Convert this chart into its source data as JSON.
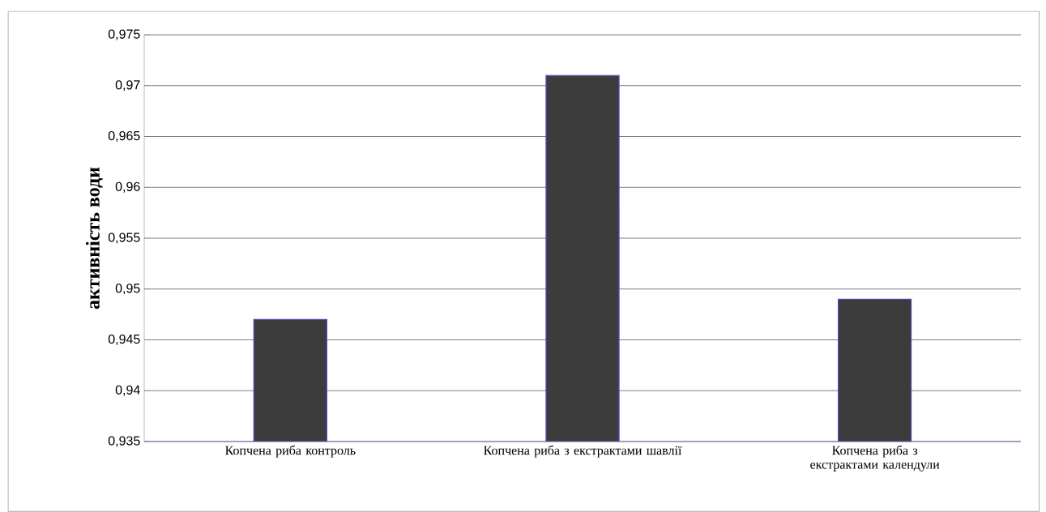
{
  "chart_data": {
    "type": "bar",
    "ylabel": "активність води",
    "categories": [
      "Копчена риба контроль",
      "Копчена риба з екстрактами шавлії",
      "Копчена риба з екстрактами календули"
    ],
    "values": [
      0.947,
      0.971,
      0.949
    ],
    "color": "#3c3c3c",
    "ylim": [
      0.935,
      0.975
    ],
    "yticks": [
      {
        "value": 0.935,
        "label": "0,935"
      },
      {
        "value": 0.94,
        "label": "0,94"
      },
      {
        "value": 0.945,
        "label": "0,945"
      },
      {
        "value": 0.95,
        "label": "0,95"
      },
      {
        "value": 0.955,
        "label": "0,955"
      },
      {
        "value": 0.96,
        "label": "0,96"
      },
      {
        "value": 0.965,
        "label": "0,965"
      },
      {
        "value": 0.97,
        "label": "0,97"
      },
      {
        "value": 0.975,
        "label": "0,975"
      }
    ],
    "grid": "y"
  }
}
